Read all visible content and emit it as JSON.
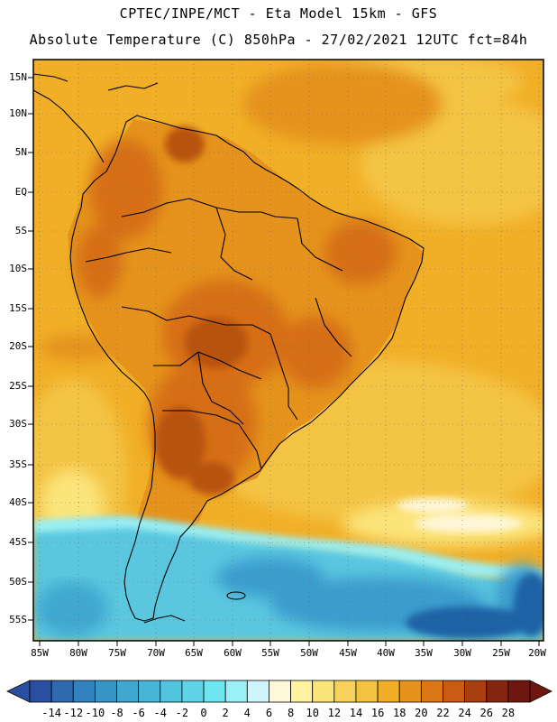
{
  "header": {
    "line1": "CPTEC/INPE/MCT -  Eta Model 15km - GFS",
    "line2": "Absolute Temperature (C) 850hPa - 27/02/2021 12UTC fct=84h"
  },
  "map": {
    "region": "South America",
    "lat_labels": [
      "15N",
      "10N",
      "5N",
      "EQ",
      "5S",
      "10S",
      "15S",
      "20S",
      "25S",
      "30S",
      "35S",
      "40S",
      "45S",
      "50S",
      "55S"
    ],
    "lon_labels": [
      "85W",
      "80W",
      "75W",
      "70W",
      "65W",
      "60W",
      "55W",
      "50W",
      "45W",
      "40W",
      "35W",
      "30W",
      "25W",
      "20W"
    ],
    "colors": {
      "ocean_mid": "#f1af27",
      "ocean_light": "#f4c444",
      "land_warm": "#e5931c",
      "land_hot": "#d66e17",
      "land_hottest": "#b8520f",
      "cold_water": "#5ac7df",
      "cold_deep": "#3a9ccd",
      "cold_deepest": "#1f62a5",
      "coast_line": "#000000"
    }
  },
  "colorbar": {
    "ticks": [
      "-14",
      "-12",
      "-10",
      "-8",
      "-6",
      "-4",
      "-2",
      "0",
      "2",
      "4",
      "6",
      "8",
      "10",
      "12",
      "14",
      "16",
      "18",
      "20",
      "22",
      "24",
      "26",
      "28"
    ],
    "colors": [
      "#2b4fa0",
      "#2f6aac",
      "#3182bd",
      "#3895c6",
      "#40a7cf",
      "#49b6d7",
      "#52c4de",
      "#5fd4e6",
      "#6ee6ef",
      "#9af0f6",
      "#cff5fa",
      "#fef7d8",
      "#fff2a0",
      "#fbe47a",
      "#f7d159",
      "#f3c241",
      "#f1af27",
      "#e5931c",
      "#dd7716",
      "#cb5b12",
      "#a93f10",
      "#842510",
      "#6e1710"
    ]
  }
}
